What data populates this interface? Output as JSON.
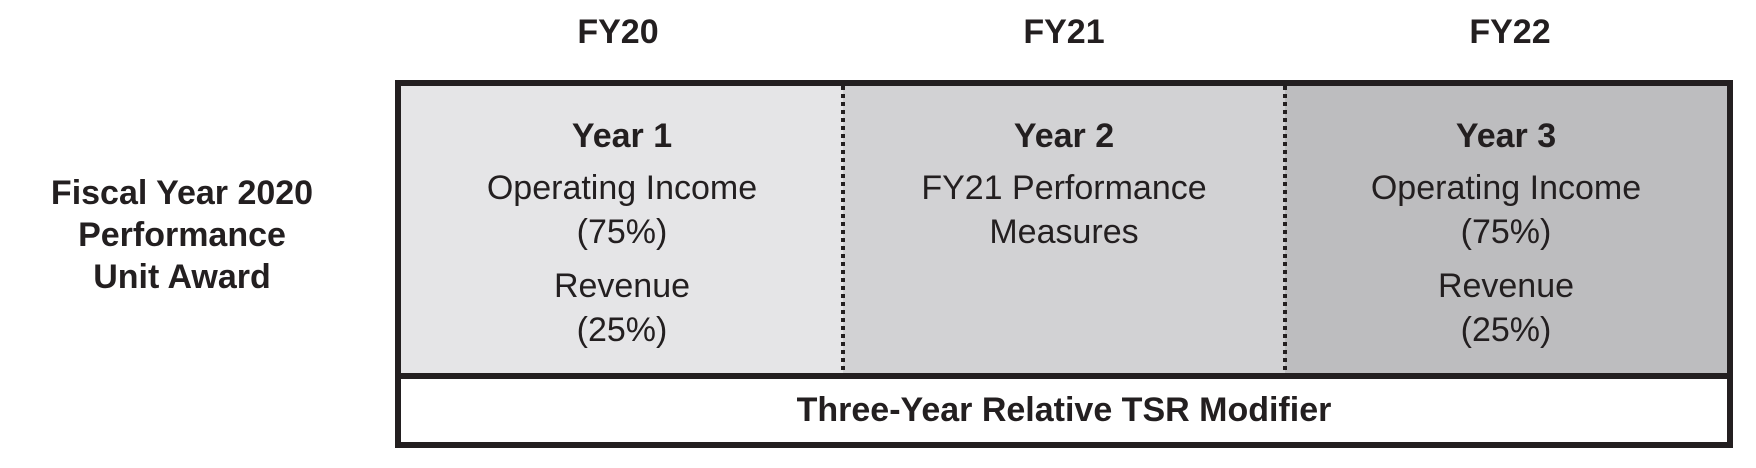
{
  "left_label": {
    "lines": [
      "Fiscal Year 2020",
      "Performance",
      "Unit Award"
    ]
  },
  "diagram": {
    "headers": [
      "FY20",
      "FY21",
      "FY22"
    ],
    "columns": [
      {
        "header": "FY20",
        "year": "Year 1",
        "groups": [
          [
            "Operating Income",
            "(75%)"
          ],
          [
            "Revenue",
            "(25%)"
          ]
        ]
      },
      {
        "header": "FY21",
        "year": "Year 2",
        "groups": [
          [
            "FY21 Performance",
            "Measures"
          ]
        ]
      },
      {
        "header": "FY22",
        "year": "Year 3",
        "groups": [
          [
            "Operating Income",
            "(75%)"
          ],
          [
            "Revenue",
            "(25%)"
          ]
        ]
      }
    ],
    "footer": "Three-Year Relative TSR Modifier",
    "colors": {
      "border": "#231f20",
      "text": "#231f20",
      "fy20_bg": "#e5e5e7",
      "fy21_bg": "#d2d2d4",
      "fy22_bg": "#bdbdbf",
      "footer_bg": "#ffffff"
    }
  }
}
